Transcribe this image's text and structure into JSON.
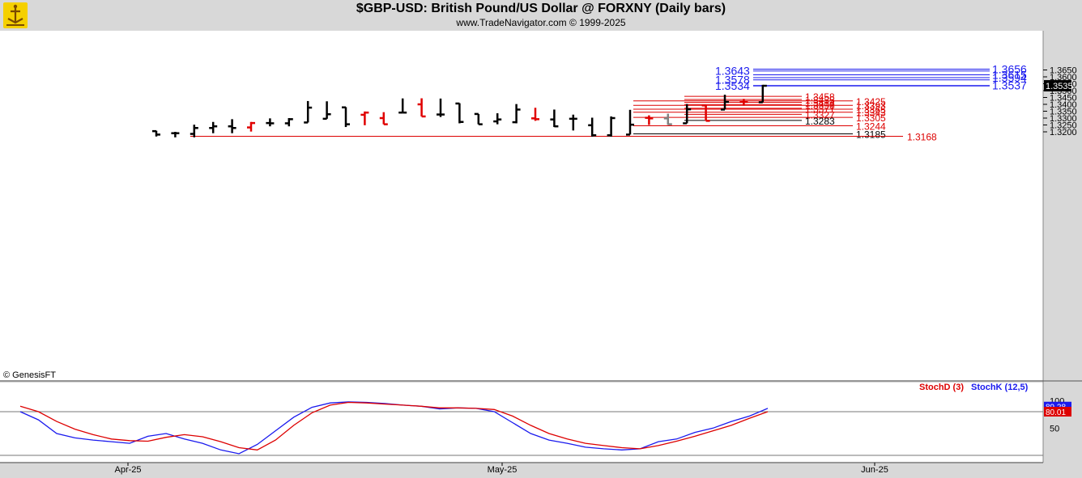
{
  "header": {
    "title": "$GBP-USD:  British Pound/US Dollar @ FORXNY  (Daily bars)",
    "subtitle": "www.TradeNavigator.com © 1999-2025"
  },
  "watermark": "© GenesisFT",
  "colors": {
    "up": "#000000",
    "down": "#e00000",
    "neutral": "#808080",
    "green": "#00cc00",
    "blue_level": "#1a1aee",
    "red_level": "#dd0000",
    "stochK": "#1a1aee",
    "stochD": "#dd0000"
  },
  "chart_data": [
    {
      "type": "ohlc",
      "title": "$GBP-USD:  British Pound/US Dollar @ FORXNY  (Daily bars)",
      "price_axis": {
        "ticks": [
          "1.3650",
          "1.3600",
          "1.3550",
          "1.3500",
          "1.3450",
          "1.3400",
          "1.3350",
          "1.3300",
          "1.3250",
          "1.3200"
        ],
        "range": [
          1.3165,
          1.3675
        ],
        "last_price_label": "1.3535"
      },
      "date_axis": {
        "labels": [
          "Apr-25",
          "May-25",
          "Jun-25"
        ]
      },
      "bars": [
        {
          "o": 1.3205,
          "h": 1.3208,
          "l": 1.3166,
          "c": 1.318,
          "col": "up"
        },
        {
          "o": 1.319,
          "h": 1.32,
          "l": 1.316,
          "c": 1.319,
          "col": "up"
        },
        {
          "o": 1.3185,
          "h": 1.3252,
          "l": 1.316,
          "c": 1.3228,
          "col": "up"
        },
        {
          "o": 1.3228,
          "h": 1.3272,
          "l": 1.319,
          "c": 1.324,
          "col": "up"
        },
        {
          "o": 1.324,
          "h": 1.3292,
          "l": 1.319,
          "c": 1.3228,
          "col": "up"
        },
        {
          "o": 1.3232,
          "h": 1.3272,
          "l": 1.3202,
          "c": 1.3264,
          "col": "down"
        },
        {
          "o": 1.3264,
          "h": 1.3298,
          "l": 1.324,
          "c": 1.3262,
          "col": "up"
        },
        {
          "o": 1.3262,
          "h": 1.33,
          "l": 1.324,
          "c": 1.3292,
          "col": "up"
        },
        {
          "o": 1.3268,
          "h": 1.3424,
          "l": 1.3268,
          "c": 1.3376,
          "col": "up"
        },
        {
          "o": 1.3295,
          "h": 1.3422,
          "l": 1.3295,
          "c": 1.3328,
          "col": "up"
        },
        {
          "o": 1.3378,
          "h": 1.338,
          "l": 1.3235,
          "c": 1.3255,
          "col": "up"
        },
        {
          "o": 1.3324,
          "h": 1.3348,
          "l": 1.3248,
          "c": 1.334,
          "col": "down"
        },
        {
          "o": 1.33,
          "h": 1.3343,
          "l": 1.3255,
          "c": 1.3255,
          "col": "down"
        },
        {
          "o": 1.334,
          "h": 1.3443,
          "l": 1.334,
          "c": 1.334,
          "col": "up"
        },
        {
          "o": 1.34,
          "h": 1.3444,
          "l": 1.3312,
          "c": 1.3312,
          "col": "down"
        },
        {
          "o": 1.3326,
          "h": 1.3442,
          "l": 1.3308,
          "c": 1.3326,
          "col": "up"
        },
        {
          "o": 1.3406,
          "h": 1.3408,
          "l": 1.3262,
          "c": 1.3272,
          "col": "up"
        },
        {
          "o": 1.333,
          "h": 1.333,
          "l": 1.3255,
          "c": 1.3255,
          "col": "up"
        },
        {
          "o": 1.3276,
          "h": 1.3335,
          "l": 1.3255,
          "c": 1.329,
          "col": "up"
        },
        {
          "o": 1.327,
          "h": 1.3402,
          "l": 1.3262,
          "c": 1.3362,
          "col": "up"
        },
        {
          "o": 1.3298,
          "h": 1.3375,
          "l": 1.328,
          "c": 1.3292,
          "col": "down"
        },
        {
          "o": 1.329,
          "h": 1.3362,
          "l": 1.3235,
          "c": 1.324,
          "col": "up"
        },
        {
          "o": 1.3295,
          "h": 1.3325,
          "l": 1.321,
          "c": 1.3295,
          "col": "up"
        },
        {
          "o": 1.3248,
          "h": 1.3303,
          "l": 1.3165,
          "c": 1.3175,
          "col": "up"
        },
        {
          "o": 1.3175,
          "h": 1.3312,
          "l": 1.3165,
          "c": 1.33,
          "col": "up"
        },
        {
          "o": 1.318,
          "h": 1.336,
          "l": 1.318,
          "c": 1.3252,
          "col": "up"
        },
        {
          "o": 1.3302,
          "h": 1.332,
          "l": 1.325,
          "c": 1.3298,
          "col": "down"
        },
        {
          "o": 1.3298,
          "h": 1.3332,
          "l": 1.325,
          "c": 1.3255,
          "col": "neutral"
        },
        {
          "o": 1.3262,
          "h": 1.3402,
          "l": 1.3262,
          "c": 1.3364,
          "col": "up"
        },
        {
          "o": 1.3392,
          "h": 1.3392,
          "l": 1.328,
          "c": 1.328,
          "col": "down"
        },
        {
          "o": 1.3362,
          "h": 1.347,
          "l": 1.3362,
          "c": 1.3418,
          "col": "up"
        },
        {
          "o": 1.3418,
          "h": 1.344,
          "l": 1.339,
          "c": 1.3418,
          "col": "down"
        },
        {
          "o": 1.3415,
          "h": 1.3542,
          "l": 1.3415,
          "c": 1.3535,
          "col": "up"
        }
      ],
      "price_levels": [
        {
          "value": 1.3656,
          "label": "1.3656",
          "color": "blue_level",
          "side": "right"
        },
        {
          "value": 1.3643,
          "label": "1.3643",
          "color": "blue_level",
          "side": "left"
        },
        {
          "value": 1.3615,
          "label": "1.3615",
          "color": "blue_level",
          "side": "right"
        },
        {
          "value": 1.3594,
          "label": "1.3594",
          "color": "blue_level",
          "side": "right"
        },
        {
          "value": 1.3578,
          "label": "1.3578",
          "color": "blue_level",
          "side": "left"
        },
        {
          "value": 1.3537,
          "label": "1.3537",
          "color": "blue_level",
          "side": "right"
        },
        {
          "value": 1.3534,
          "label": "1.3534",
          "color": "blue_level",
          "side": "left"
        },
        {
          "value": 1.3458,
          "label": "1.3458",
          "color": "red_level",
          "side": "mid"
        },
        {
          "value": 1.3435,
          "label": "1.3435",
          "color": "red_level",
          "side": "mid"
        },
        {
          "value": 1.3425,
          "label": "1.3425",
          "color": "red_level",
          "side": "end"
        },
        {
          "value": 1.3414,
          "label": "1.3414",
          "color": "red_level",
          "side": "mid"
        },
        {
          "value": 1.3398,
          "label": "1.3398",
          "color": "red_level",
          "side": "mid"
        },
        {
          "value": 1.3393,
          "label": "1.3393",
          "color": "red_level",
          "side": "end"
        },
        {
          "value": 1.3371,
          "label": "1.3371",
          "color": "red_level",
          "side": "mid"
        },
        {
          "value": 1.3365,
          "label": "1.3365",
          "color": "red_level",
          "side": "end"
        },
        {
          "value": 1.3343,
          "label": "1.3343",
          "color": "red_level",
          "side": "end"
        },
        {
          "value": 1.3327,
          "label": "1.3327",
          "color": "red_level",
          "side": "mid"
        },
        {
          "value": 1.3305,
          "label": "1.3305",
          "color": "red_level",
          "side": "end"
        },
        {
          "value": 1.3283,
          "label": "1.3283",
          "color": "black",
          "side": "mid"
        },
        {
          "value": 1.3244,
          "label": "1.3244",
          "color": "red_level",
          "side": "end"
        },
        {
          "value": 1.3185,
          "label": "1.3185",
          "color": "black",
          "side": "end"
        },
        {
          "value": 1.3168,
          "label": "1.3168",
          "color": "red_level",
          "side": "far"
        }
      ]
    },
    {
      "type": "line",
      "title": "",
      "legend": [
        "StochD (3)",
        "StochK (12,5)"
      ],
      "y_axis": {
        "ticks": [
          "100",
          "50"
        ],
        "range": [
          0,
          100
        ],
        "last_values": [
          "89.28",
          "80.01"
        ]
      },
      "series": [
        {
          "name": "StochK (12,5)",
          "values": [
            80,
            65,
            40,
            32,
            28,
            25,
            22,
            35,
            40,
            30,
            22,
            10,
            3,
            20,
            45,
            70,
            88,
            96,
            98,
            97,
            95,
            92,
            90,
            85,
            87,
            86,
            80,
            60,
            40,
            28,
            22,
            15,
            12,
            10,
            12,
            25,
            30,
            42,
            50,
            62,
            72,
            86
          ]
        },
        {
          "name": "StochD (3)",
          "values": [
            90,
            80,
            62,
            48,
            38,
            30,
            27,
            26,
            33,
            38,
            34,
            25,
            14,
            10,
            28,
            55,
            78,
            92,
            97,
            96,
            94,
            92,
            90,
            87,
            87,
            86,
            84,
            72,
            55,
            40,
            30,
            22,
            18,
            14,
            12,
            18,
            26,
            35,
            45,
            55,
            68,
            80
          ]
        }
      ]
    }
  ]
}
